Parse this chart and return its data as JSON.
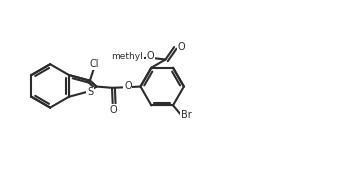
{
  "bg": "#ffffff",
  "lc": "#2c2c2c",
  "lw": 1.5,
  "fs": 7.0,
  "fw": 3.46,
  "fh": 1.75,
  "dpi": 100,
  "xlim": [
    -0.2,
    10.6
  ],
  "ylim": [
    0.3,
    5.3
  ],
  "bl": 0.68,
  "atoms": {
    "S": "S",
    "Cl": "Cl",
    "O_carb_down": "O",
    "O_bridge": "O",
    "O_methoxy_ether": "O",
    "O_methoxy_carb": "O",
    "Br": "Br",
    "methyl": "methyl"
  }
}
